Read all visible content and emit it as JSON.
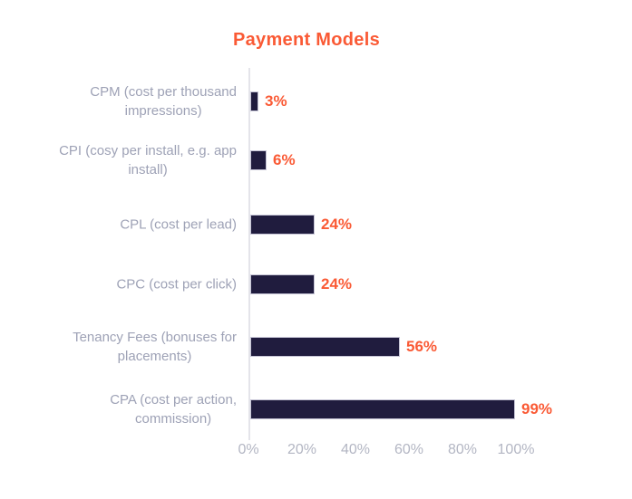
{
  "title": "Payment Models",
  "colors": {
    "accent_orange": "#FA5A35",
    "bar_navy": "#201C3E",
    "bar_border": "#C6C5D6",
    "category_label_gray": "#9EA2B6",
    "tick_gray": "#B3B6C3",
    "axis_line_gray": "#E4E4EA",
    "background": "#FFFFFF"
  },
  "chart_data": {
    "type": "bar",
    "orientation": "horizontal",
    "title": "Payment Models",
    "categories": [
      "CPM (cost per thousand impressions)",
      "CPI (cosy per install, e.g. app install)",
      "CPL (cost per lead)",
      "CPC (cost per click)",
      "Tenancy Fees (bonuses for placements)",
      "CPA (cost per action, commission)"
    ],
    "category_lines": [
      [
        "CPM (cost per thousand",
        "impressions)"
      ],
      [
        "CPI (cosy per install, e.g. app",
        "install)"
      ],
      [
        "CPL (cost per lead)"
      ],
      [
        "CPC (cost per click)"
      ],
      [
        "Tenancy Fees (bonuses for",
        "placements)"
      ],
      [
        "CPA (cost per action,",
        "commission)"
      ]
    ],
    "values": [
      3,
      6,
      24,
      24,
      56,
      99
    ],
    "value_labels": [
      "3%",
      "6%",
      "24%",
      "24%",
      "56%",
      "99%"
    ],
    "x_ticks": [
      "0%",
      "20%",
      "40%",
      "60%",
      "80%",
      "100%"
    ],
    "x_tick_values": [
      0,
      20,
      40,
      60,
      80,
      100
    ],
    "xlim": [
      0,
      100
    ],
    "grid": false,
    "legend": false,
    "value_label_position": "right-of-bar"
  }
}
